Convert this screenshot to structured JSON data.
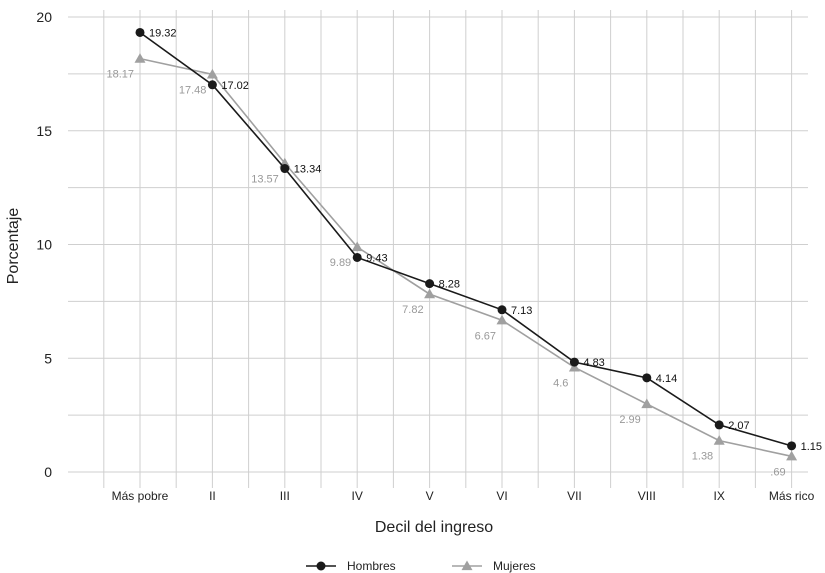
{
  "chart_data": {
    "type": "line",
    "title": "",
    "xlabel": "Decil del ingreso",
    "ylabel": "Porcentaje",
    "categories": [
      "Más pobre",
      "II",
      "III",
      "IV",
      "V",
      "VI",
      "VII",
      "VIII",
      "IX",
      "Más rico"
    ],
    "ylim": [
      0,
      20
    ],
    "yticks": [
      0,
      5,
      10,
      15,
      20
    ],
    "grid": true,
    "legend_position": "bottom",
    "series": [
      {
        "name": "Hombres",
        "color": "#1a1a1a",
        "marker": "circle",
        "values": [
          19.32,
          17.02,
          13.34,
          9.43,
          8.28,
          7.13,
          4.83,
          4.14,
          2.07,
          1.15
        ],
        "labels": [
          "19.32",
          "17.02",
          "13.34",
          "9.43",
          "8.28",
          "7.13",
          "4.83",
          "4.14",
          "2.07",
          "1.15"
        ]
      },
      {
        "name": "Mujeres",
        "color": "#a0a0a0",
        "marker": "triangle",
        "values": [
          18.17,
          17.48,
          13.57,
          9.89,
          7.82,
          6.67,
          4.6,
          2.99,
          1.38,
          0.69
        ],
        "labels": [
          "18.17",
          "17.48",
          "13.57",
          "9.89",
          "7.82",
          "6.67",
          "4.6",
          "2.99",
          "1.38",
          ".69"
        ]
      }
    ]
  }
}
